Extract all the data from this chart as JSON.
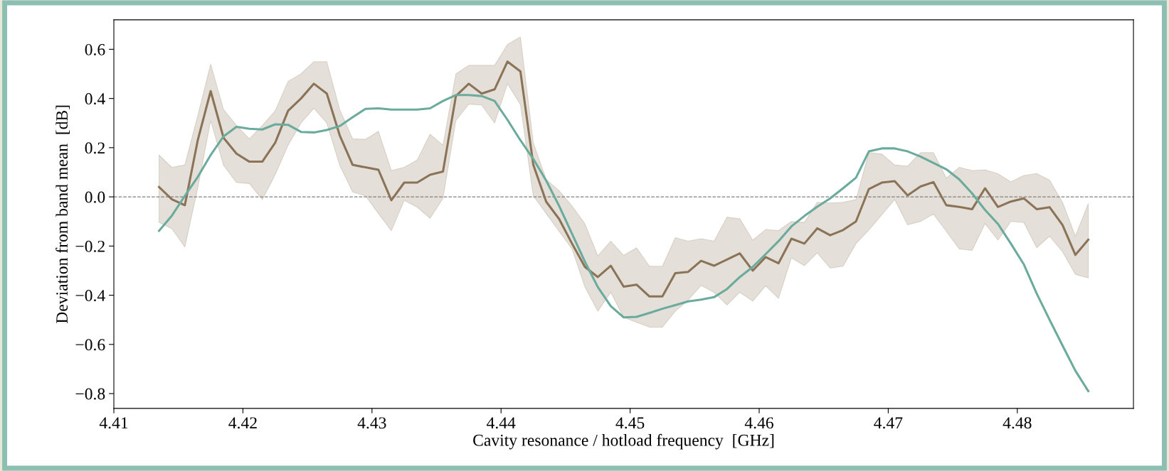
{
  "chart_data": {
    "type": "line",
    "xlabel": "Cavity resonance / hotload frequency  [GHz]",
    "ylabel": "Deviation from band mean  [dB]",
    "x": [
      4.4135,
      4.4145,
      4.4155,
      4.4165,
      4.4175,
      4.4185,
      4.4195,
      4.4205,
      4.4215,
      4.4225,
      4.4235,
      4.4245,
      4.4255,
      4.4265,
      4.4275,
      4.4285,
      4.4295,
      4.4305,
      4.4315,
      4.4325,
      4.4335,
      4.4345,
      4.4355,
      4.4365,
      4.4375,
      4.4385,
      4.4395,
      4.4405,
      4.4415,
      4.4425,
      4.4435,
      4.4445,
      4.4455,
      4.4465,
      4.4475,
      4.4485,
      4.4495,
      4.4505,
      4.4515,
      4.4525,
      4.4535,
      4.4545,
      4.4555,
      4.4565,
      4.4575,
      4.4585,
      4.4595,
      4.4605,
      4.4615,
      4.4625,
      4.4635,
      4.4645,
      4.4655,
      4.4665,
      4.4675,
      4.4685,
      4.4695,
      4.4705,
      4.4715,
      4.4725,
      4.4735,
      4.4745,
      4.4755,
      4.4765,
      4.4775,
      4.4785,
      4.4795,
      4.4805,
      4.4815,
      4.4825,
      4.4835,
      4.4845,
      4.4855
    ],
    "series": [
      {
        "color": "#8b7358",
        "values": [
          0.04,
          -0.01,
          -0.034,
          0.23,
          0.43,
          0.24,
          0.176,
          0.143,
          0.143,
          0.22,
          0.35,
          0.4,
          0.46,
          0.42,
          0.25,
          0.13,
          0.12,
          0.11,
          -0.014,
          0.058,
          0.058,
          0.09,
          0.103,
          0.41,
          0.46,
          0.42,
          0.437,
          0.55,
          0.51,
          0.13,
          -0.02,
          -0.09,
          -0.19,
          -0.285,
          -0.326,
          -0.28,
          -0.365,
          -0.357,
          -0.405,
          -0.405,
          -0.31,
          -0.305,
          -0.26,
          -0.28,
          -0.255,
          -0.23,
          -0.3,
          -0.245,
          -0.27,
          -0.17,
          -0.19,
          -0.128,
          -0.156,
          -0.135,
          -0.1,
          0.032,
          0.058,
          0.064,
          0.006,
          0.042,
          0.06,
          -0.034,
          -0.041,
          -0.05,
          0.035,
          -0.041,
          -0.019,
          -0.006,
          -0.05,
          -0.042,
          -0.114,
          -0.236,
          -0.174
        ],
        "lower": [
          -0.104,
          -0.13,
          -0.204,
          0.035,
          0.31,
          0.128,
          0.058,
          0.054,
          -0.011,
          0.09,
          0.21,
          0.3,
          0.36,
          0.3,
          0.128,
          0.02,
          0.004,
          -0.068,
          -0.138,
          -0.014,
          -0.042,
          -0.087,
          -0.006,
          0.31,
          0.377,
          0.373,
          0.3,
          0.46,
          0.375,
          0.004,
          -0.068,
          -0.14,
          -0.212,
          -0.367,
          -0.465,
          -0.388,
          -0.49,
          -0.51,
          -0.53,
          -0.53,
          -0.465,
          -0.42,
          -0.36,
          -0.388,
          -0.44,
          -0.388,
          -0.424,
          -0.362,
          -0.413,
          -0.248,
          -0.28,
          -0.228,
          -0.29,
          -0.282,
          -0.19,
          -0.135,
          -0.073,
          -0.011,
          -0.114,
          -0.1,
          -0.07,
          -0.14,
          -0.212,
          -0.218,
          -0.109,
          -0.176,
          -0.1,
          -0.104,
          -0.207,
          -0.16,
          -0.223,
          -0.315,
          -0.33
        ],
        "upper": [
          0.17,
          0.12,
          0.13,
          0.33,
          0.54,
          0.355,
          0.29,
          0.236,
          0.29,
          0.35,
          0.47,
          0.5,
          0.55,
          0.55,
          0.355,
          0.236,
          0.234,
          0.267,
          0.107,
          0.12,
          0.15,
          0.255,
          0.21,
          0.5,
          0.535,
          0.535,
          0.535,
          0.62,
          0.65,
          0.22,
          0.07,
          0.025,
          -0.037,
          -0.11,
          -0.24,
          -0.18,
          -0.238,
          -0.207,
          -0.282,
          -0.282,
          -0.166,
          -0.18,
          -0.17,
          -0.18,
          -0.083,
          -0.089,
          -0.176,
          -0.133,
          -0.137,
          -0.1,
          -0.104,
          -0.022,
          -0.025,
          -0.022,
          -0.011,
          0.18,
          0.174,
          0.13,
          0.125,
          0.18,
          0.18,
          0.076,
          0.12,
          0.107,
          0.11,
          0.094,
          0.061,
          0.087,
          0.095,
          0.068,
          -0.022,
          -0.159,
          -0.027
        ]
      },
      {
        "color": "#6aab9d",
        "values": [
          -0.138,
          -0.076,
          0.004,
          0.081,
          0.17,
          0.246,
          0.285,
          0.277,
          0.274,
          0.295,
          0.293,
          0.264,
          0.262,
          0.272,
          0.288,
          0.324,
          0.358,
          0.36,
          0.355,
          0.355,
          0.355,
          0.36,
          0.39,
          0.414,
          0.414,
          0.41,
          0.39,
          0.313,
          0.23,
          0.154,
          0.066,
          -0.037,
          -0.15,
          -0.264,
          -0.367,
          -0.444,
          -0.49,
          -0.488,
          -0.472,
          -0.455,
          -0.44,
          -0.425,
          -0.418,
          -0.408,
          -0.375,
          -0.326,
          -0.285,
          -0.233,
          -0.18,
          -0.12,
          -0.078,
          -0.04,
          -0.006,
          0.035,
          0.078,
          0.185,
          0.197,
          0.197,
          0.185,
          0.164,
          0.138,
          0.112,
          0.071,
          0.014,
          -0.053,
          -0.11,
          -0.19,
          -0.274,
          -0.393,
          -0.5,
          -0.604,
          -0.707,
          -0.79
        ]
      }
    ],
    "xlim": [
      4.41,
      4.489
    ],
    "xticks": [
      4.41,
      4.42,
      4.43,
      4.44,
      4.45,
      4.46,
      4.47,
      4.48
    ],
    "ylim": [
      -0.86,
      0.72
    ],
    "yticks": [
      -0.8,
      -0.6,
      -0.4,
      -0.2,
      {
        "value": 0,
        "label": "0.0"
      },
      0.2,
      0.4,
      0.6
    ],
    "ref_lines": [
      {
        "axis": "y",
        "value": 0,
        "color": "#808080",
        "line_style": "dashed"
      }
    ],
    "grid": false,
    "legend": false
  }
}
